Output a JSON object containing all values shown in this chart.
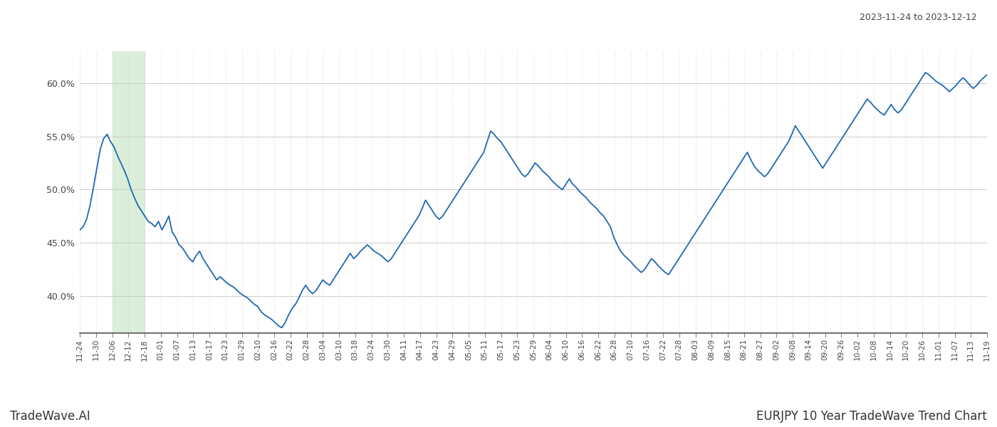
{
  "title": "EURJPY 10 Year TradeWave Trend Chart",
  "date_range_text": "2023-11-24 to 2023-12-12",
  "background_color": "#ffffff",
  "line_color": "#2068b0",
  "highlight_color": "#daeeda",
  "y_min": 36.5,
  "y_max": 63.0,
  "y_ticks": [
    40.0,
    45.0,
    50.0,
    55.0,
    60.0
  ],
  "x_labels": [
    "11-24",
    "11-30",
    "12-06",
    "12-12",
    "12-18",
    "01-01",
    "01-07",
    "01-13",
    "01-17",
    "01-23",
    "01-29",
    "02-10",
    "02-16",
    "02-22",
    "02-28",
    "03-04",
    "03-10",
    "03-18",
    "03-24",
    "03-30",
    "04-11",
    "04-17",
    "04-23",
    "04-29",
    "05-05",
    "05-11",
    "05-17",
    "05-23",
    "05-29",
    "06-04",
    "06-10",
    "06-16",
    "06-22",
    "06-28",
    "07-10",
    "07-16",
    "07-22",
    "07-28",
    "08-03",
    "08-09",
    "08-15",
    "08-21",
    "08-27",
    "09-02",
    "09-08",
    "09-14",
    "09-20",
    "09-26",
    "10-02",
    "10-08",
    "10-14",
    "10-20",
    "10-26",
    "11-01",
    "11-07",
    "11-13",
    "11-19"
  ],
  "highlight_x_start_label": "12-06",
  "highlight_x_end_label": "12-18",
  "y_data": [
    46.2,
    46.5,
    47.2,
    48.5,
    50.2,
    52.0,
    53.8,
    54.8,
    55.2,
    54.5,
    54.0,
    53.2,
    52.5,
    51.8,
    51.0,
    50.0,
    49.2,
    48.5,
    48.0,
    47.5,
    47.0,
    46.8,
    46.5,
    47.0,
    46.2,
    46.8,
    47.5,
    46.0,
    45.5,
    44.8,
    44.5,
    44.0,
    43.5,
    43.2,
    43.8,
    44.2,
    43.5,
    43.0,
    42.5,
    42.0,
    41.5,
    41.8,
    41.5,
    41.2,
    41.0,
    40.8,
    40.5,
    40.2,
    40.0,
    39.8,
    39.5,
    39.2,
    39.0,
    38.5,
    38.2,
    38.0,
    37.8,
    37.5,
    37.2,
    37.0,
    37.5,
    38.2,
    38.8,
    39.2,
    39.8,
    40.5,
    41.0,
    40.5,
    40.2,
    40.5,
    41.0,
    41.5,
    41.2,
    41.0,
    41.5,
    42.0,
    42.5,
    43.0,
    43.5,
    44.0,
    43.5,
    43.8,
    44.2,
    44.5,
    44.8,
    44.5,
    44.2,
    44.0,
    43.8,
    43.5,
    43.2,
    43.5,
    44.0,
    44.5,
    45.0,
    45.5,
    46.0,
    46.5,
    47.0,
    47.5,
    48.2,
    49.0,
    48.5,
    48.0,
    47.5,
    47.2,
    47.5,
    48.0,
    48.5,
    49.0,
    49.5,
    50.0,
    50.5,
    51.0,
    51.5,
    52.0,
    52.5,
    53.0,
    53.5,
    54.5,
    55.5,
    55.2,
    54.8,
    54.5,
    54.0,
    53.5,
    53.0,
    52.5,
    52.0,
    51.5,
    51.2,
    51.5,
    52.0,
    52.5,
    52.2,
    51.8,
    51.5,
    51.2,
    50.8,
    50.5,
    50.2,
    50.0,
    50.5,
    51.0,
    50.5,
    50.2,
    49.8,
    49.5,
    49.2,
    48.8,
    48.5,
    48.2,
    47.8,
    47.5,
    47.0,
    46.5,
    45.5,
    44.8,
    44.2,
    43.8,
    43.5,
    43.2,
    42.8,
    42.5,
    42.2,
    42.5,
    43.0,
    43.5,
    43.2,
    42.8,
    42.5,
    42.2,
    42.0,
    42.5,
    43.0,
    43.5,
    44.0,
    44.5,
    45.0,
    45.5,
    46.0,
    46.5,
    47.0,
    47.5,
    48.0,
    48.5,
    49.0,
    49.5,
    50.0,
    50.5,
    51.0,
    51.5,
    52.0,
    52.5,
    53.0,
    53.5,
    52.8,
    52.2,
    51.8,
    51.5,
    51.2,
    51.5,
    52.0,
    52.5,
    53.0,
    53.5,
    54.0,
    54.5,
    55.2,
    56.0,
    55.5,
    55.0,
    54.5,
    54.0,
    53.5,
    53.0,
    52.5,
    52.0,
    52.5,
    53.0,
    53.5,
    54.0,
    54.5,
    55.0,
    55.5,
    56.0,
    56.5,
    57.0,
    57.5,
    58.0,
    58.5,
    58.2,
    57.8,
    57.5,
    57.2,
    57.0,
    57.5,
    58.0,
    57.5,
    57.2,
    57.5,
    58.0,
    58.5,
    59.0,
    59.5,
    60.0,
    60.5,
    61.0,
    60.8,
    60.5,
    60.2,
    60.0,
    59.8,
    59.5,
    59.2,
    59.5,
    59.8,
    60.2,
    60.5,
    60.2,
    59.8,
    59.5,
    59.8,
    60.2,
    60.5,
    60.8
  ],
  "footer_left": "TradeWave.AI",
  "footer_right": "EURJPY 10 Year TradeWave Trend Chart"
}
